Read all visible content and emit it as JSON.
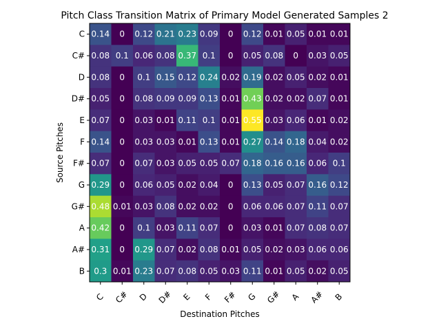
{
  "chart_data": {
    "type": "heatmap",
    "title": "Pitch Class Transition Matrix of Primary Model Generated Samples 2",
    "xlabel": "Destination Pitches",
    "ylabel": "Source Pitches",
    "x_categories": [
      "C",
      "C#",
      "D",
      "D#",
      "E",
      "F",
      "F#",
      "G",
      "G#",
      "A",
      "A#",
      "B"
    ],
    "y_categories": [
      "C",
      "C#",
      "D",
      "D#",
      "E",
      "F",
      "F#",
      "G",
      "G#",
      "A",
      "A#",
      "B"
    ],
    "colormap": "viridis",
    "grid": false,
    "values": [
      [
        0.14,
        0.0,
        0.12,
        0.21,
        0.23,
        0.09,
        0.0,
        0.12,
        0.01,
        0.05,
        0.01,
        0.01
      ],
      [
        0.08,
        0.1,
        0.06,
        0.08,
        0.37,
        0.1,
        0.0,
        0.05,
        0.08,
        0.0,
        0.03,
        0.05
      ],
      [
        0.08,
        0.0,
        0.1,
        0.15,
        0.12,
        0.24,
        0.02,
        0.19,
        0.02,
        0.05,
        0.02,
        0.01
      ],
      [
        0.05,
        0.0,
        0.08,
        0.09,
        0.09,
        0.13,
        0.01,
        0.43,
        0.02,
        0.02,
        0.07,
        0.01
      ],
      [
        0.07,
        0.0,
        0.03,
        0.01,
        0.11,
        0.1,
        0.01,
        0.55,
        0.03,
        0.06,
        0.01,
        0.02
      ],
      [
        0.14,
        0.0,
        0.03,
        0.03,
        0.01,
        0.13,
        0.01,
        0.27,
        0.14,
        0.18,
        0.04,
        0.02
      ],
      [
        0.07,
        0.0,
        0.07,
        0.03,
        0.05,
        0.05,
        0.07,
        0.18,
        0.16,
        0.16,
        0.06,
        0.1
      ],
      [
        0.29,
        0.0,
        0.06,
        0.05,
        0.02,
        0.04,
        0.0,
        0.13,
        0.05,
        0.07,
        0.16,
        0.12
      ],
      [
        0.48,
        0.01,
        0.03,
        0.08,
        0.02,
        0.02,
        0.0,
        0.06,
        0.06,
        0.07,
        0.11,
        0.07
      ],
      [
        0.42,
        0.0,
        0.1,
        0.03,
        0.11,
        0.07,
        0.0,
        0.03,
        0.01,
        0.07,
        0.08,
        0.07
      ],
      [
        0.31,
        0.0,
        0.29,
        0.07,
        0.02,
        0.08,
        0.01,
        0.05,
        0.02,
        0.03,
        0.06,
        0.06
      ],
      [
        0.3,
        0.01,
        0.23,
        0.07,
        0.08,
        0.05,
        0.03,
        0.11,
        0.01,
        0.05,
        0.02,
        0.05
      ]
    ]
  }
}
